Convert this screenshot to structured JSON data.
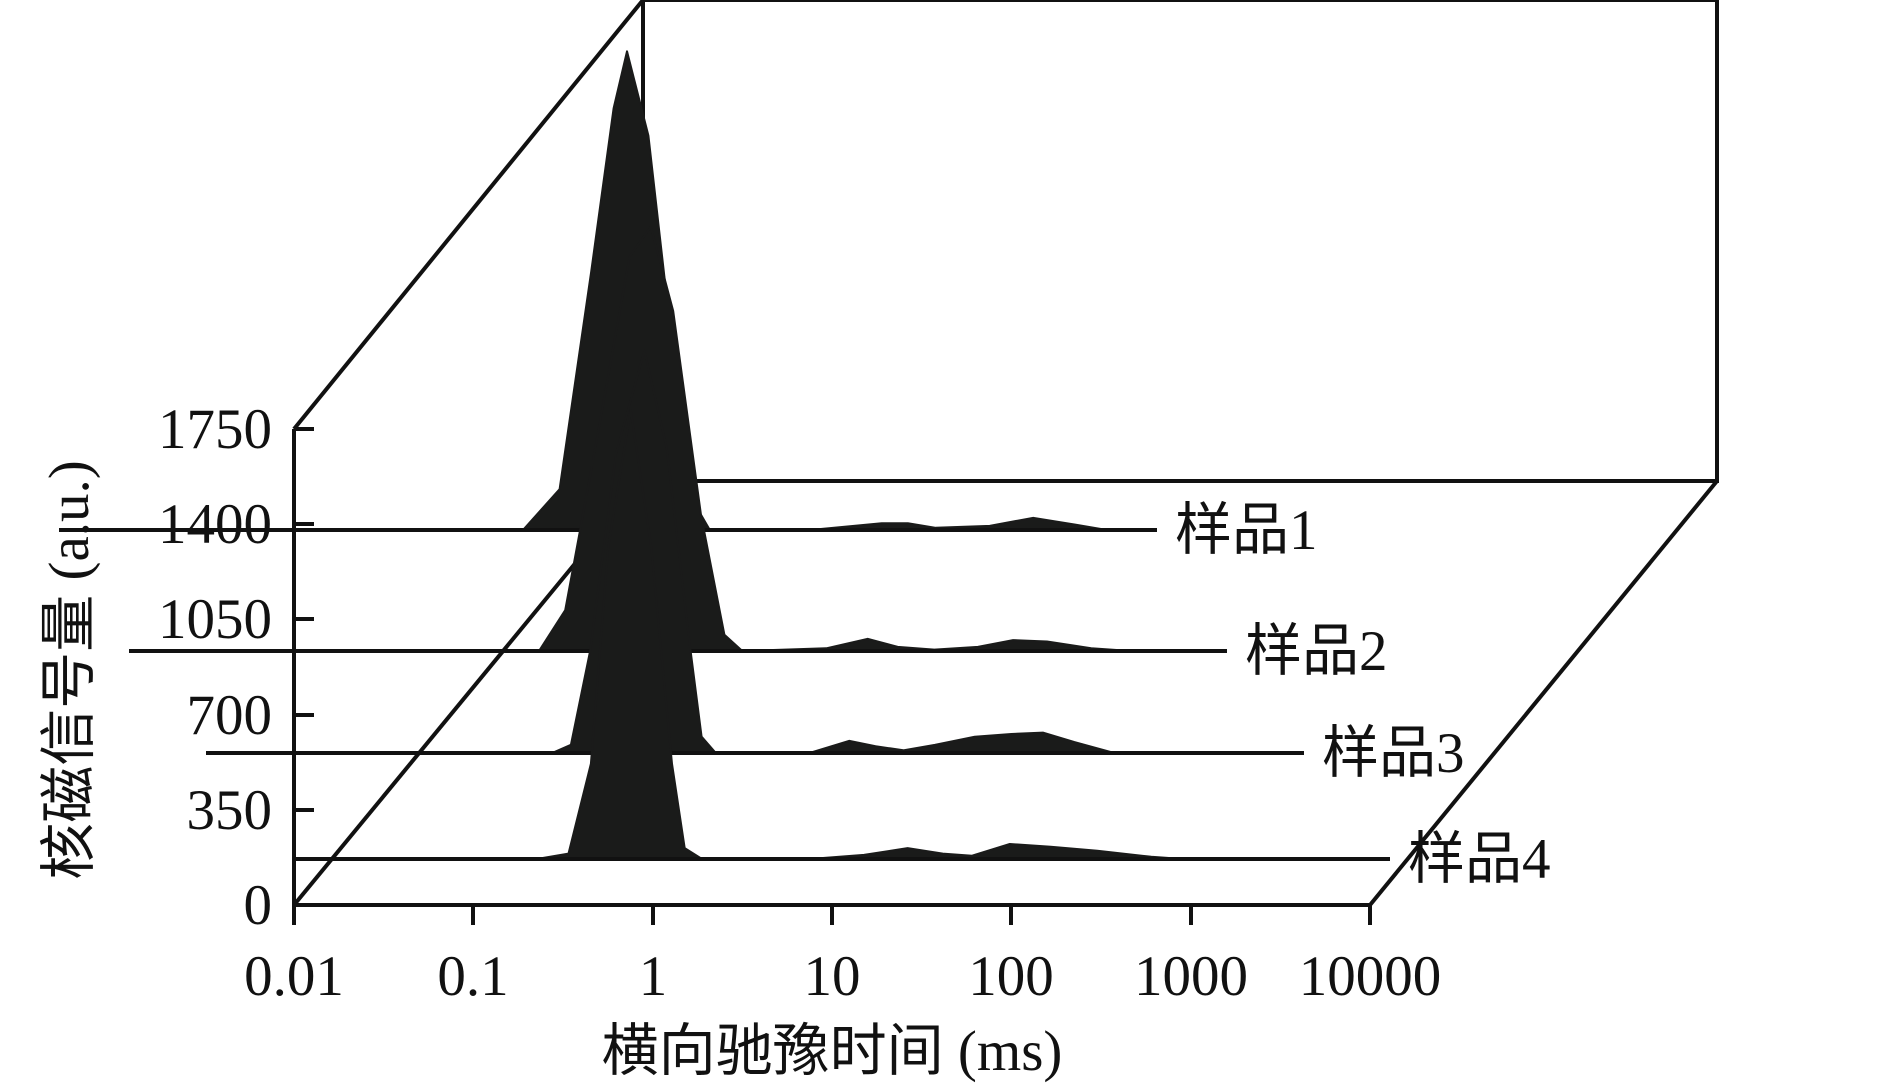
{
  "chart_data": {
    "type": "area",
    "subtype": "3d-waterfall",
    "xlabel": "横向驰豫时间 (ms)",
    "ylabel": "核磁信号量 (a.u.)",
    "x_scale": "log",
    "x_ticks": [
      "0.01",
      "0.1",
      "1",
      "10",
      "100",
      "1000",
      "10000"
    ],
    "y_ticks": [
      "0",
      "350",
      "700",
      "1050",
      "1400",
      "1750"
    ],
    "ylim": [
      0,
      1750
    ],
    "xlim": [
      0.01,
      10000
    ],
    "grid": false,
    "legend": "series labels at right end of each baseline",
    "fill_color": "#1a1b1a",
    "series": [
      {
        "name": "样品4",
        "points": [
          [
            0.3,
            0
          ],
          [
            0.45,
            20
          ],
          [
            0.6,
            350
          ],
          [
            0.75,
            1150
          ],
          [
            1.0,
            1650
          ],
          [
            1.3,
            1150
          ],
          [
            1.7,
            350
          ],
          [
            2.0,
            40
          ],
          [
            2.5,
            0
          ],
          [
            10,
            0
          ],
          [
            20,
            15
          ],
          [
            35,
            40
          ],
          [
            55,
            20
          ],
          [
            80,
            12
          ],
          [
            130,
            55
          ],
          [
            220,
            45
          ],
          [
            400,
            30
          ],
          [
            800,
            8
          ],
          [
            1200,
            0
          ]
        ]
      },
      {
        "name": "样品3",
        "points": [
          [
            1.1,
            0
          ],
          [
            1.4,
            30
          ],
          [
            1.8,
            380
          ],
          [
            2.5,
            1100
          ],
          [
            3.6,
            1480
          ],
          [
            4.8,
            1120
          ],
          [
            6.3,
            450
          ],
          [
            7.5,
            60
          ],
          [
            9,
            0
          ],
          [
            30,
            0
          ],
          [
            50,
            45
          ],
          [
            70,
            25
          ],
          [
            100,
            10
          ],
          [
            150,
            30
          ],
          [
            250,
            60
          ],
          [
            400,
            70
          ],
          [
            600,
            75
          ],
          [
            900,
            40
          ],
          [
            1500,
            0
          ]
        ]
      },
      {
        "name": "样品2",
        "points": [
          [
            2.5,
            0
          ],
          [
            3.5,
            150
          ],
          [
            5,
            700
          ],
          [
            8,
            1450
          ],
          [
            10.5,
            1560
          ],
          [
            14,
            1250
          ],
          [
            20,
            500
          ],
          [
            27,
            60
          ],
          [
            34,
            0
          ],
          [
            100,
            10
          ],
          [
            170,
            45
          ],
          [
            250,
            15
          ],
          [
            400,
            5
          ],
          [
            700,
            15
          ],
          [
            1100,
            40
          ],
          [
            1700,
            35
          ],
          [
            3000,
            10
          ],
          [
            5000,
            0
          ]
        ]
      },
      {
        "name": "样品1",
        "points": [
          [
            5,
            0
          ],
          [
            8,
            150
          ],
          [
            12,
            950
          ],
          [
            16,
            1550
          ],
          [
            19,
            1760
          ],
          [
            25,
            1450
          ],
          [
            35,
            600
          ],
          [
            45,
            100
          ],
          [
            55,
            0
          ],
          [
            200,
            0
          ],
          [
            500,
            25
          ],
          [
            700,
            25
          ],
          [
            1000,
            8
          ],
          [
            2000,
            15
          ],
          [
            3500,
            45
          ],
          [
            6000,
            20
          ],
          [
            9000,
            0
          ]
        ]
      }
    ]
  }
}
